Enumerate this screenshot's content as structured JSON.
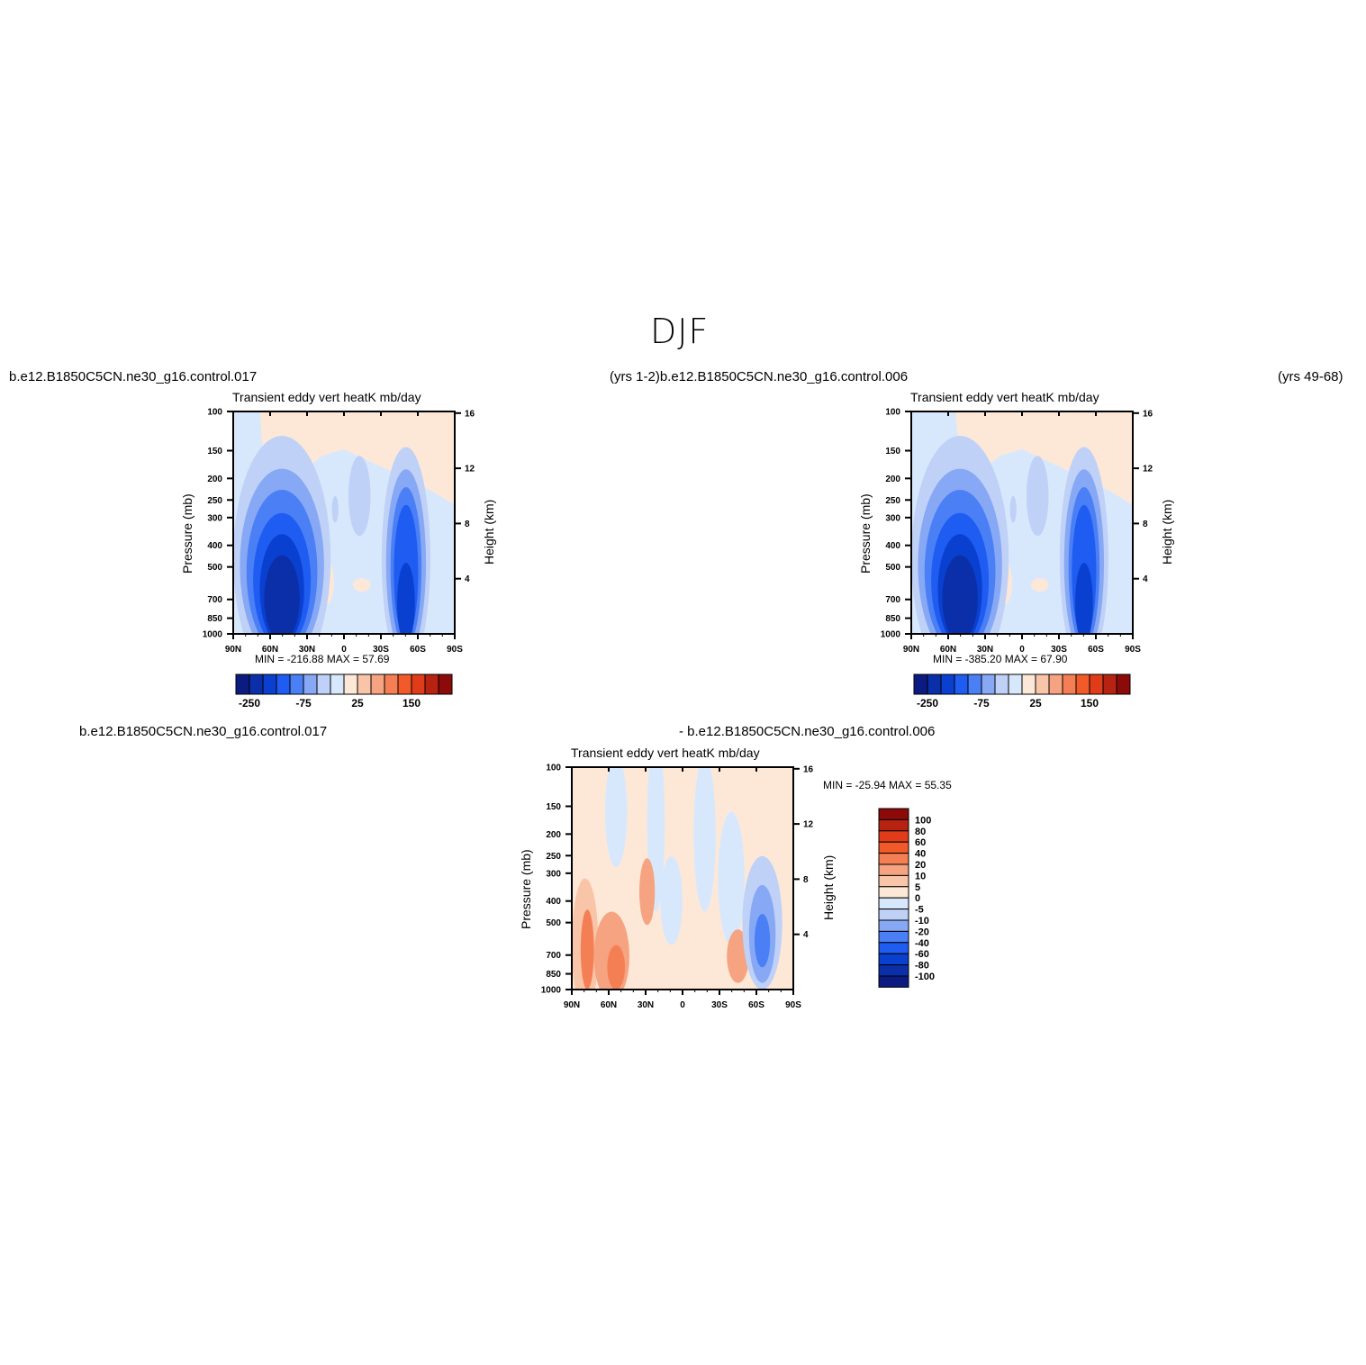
{
  "figure": {
    "title": "DJF",
    "top_left_case": "b.e12.B1850C5CN.ne30_g16.control.017",
    "top_middle_case": "(yrs 1-2)b.e12.B1850C5CN.ne30_g16.control.006",
    "top_right_years": "(yrs 49-68)",
    "bottom_left_case": "b.e12.B1850C5CN.ne30_g16.control.017",
    "bottom_right_case": "- b.e12.B1850C5CN.ne30_g16.control.006"
  },
  "colors": {
    "top_levels_palette": [
      "#0b1b82",
      "#0a2fa8",
      "#0a40d0",
      "#1f5cf2",
      "#4a7ff5",
      "#87a8f5",
      "#bfd1f7",
      "#d8e8fc",
      "#fde8d8",
      "#f9c5a8",
      "#f6a381",
      "#f57f55",
      "#f25a2a",
      "#e03c1a",
      "#b72310",
      "#8c0b09"
    ],
    "diff_palette": [
      "#0b1b82",
      "#0a2fa8",
      "#0a40d0",
      "#1f5cf2",
      "#4a7ff5",
      "#87a8f5",
      "#bfd1f7",
      "#d8e8fc",
      "#fde8d8",
      "#f9c5a8",
      "#f6a381",
      "#f57f55",
      "#f25a2a",
      "#e03c1a",
      "#b72310",
      "#8c0b09"
    ]
  },
  "chart_data": [
    {
      "type": "heatmap",
      "title": "Transient eddy vert heatK mb/day",
      "ylabel": "Pressure (mb)",
      "ylabel_right": "Height (km)",
      "x_ticks": [
        "90N",
        "60N",
        "30N",
        "0",
        "30S",
        "60S",
        "90S"
      ],
      "y_ticks": [
        "100",
        "150",
        "200",
        "250",
        "300",
        "400",
        "500",
        "700",
        "850",
        "1000"
      ],
      "y_right_ticks": [
        "16",
        "12",
        "8",
        "4"
      ],
      "min_max": "MIN = -216.88   MAX =   57.69",
      "colorbar_labels": [
        "-250",
        "-75",
        "25",
        "150"
      ],
      "features": [
        {
          "kind": "negative core",
          "lat_range": [
            "75N",
            "30N"
          ],
          "p_range": [
            350,
            950
          ],
          "min": -216.88
        },
        {
          "kind": "negative core",
          "lat_range": [
            "30S",
            "70S"
          ],
          "p_range": [
            250,
            950
          ]
        },
        {
          "kind": "positive region",
          "lat_range": [
            "70N",
            "90S"
          ],
          "p_range": [
            100,
            250
          ],
          "max": 57.69
        }
      ]
    },
    {
      "type": "heatmap",
      "title": "Transient eddy vert heatK mb/day",
      "ylabel": "Pressure (mb)",
      "ylabel_right": "Height (km)",
      "x_ticks": [
        "90N",
        "60N",
        "30N",
        "0",
        "30S",
        "60S",
        "90S"
      ],
      "y_ticks": [
        "100",
        "150",
        "200",
        "250",
        "300",
        "400",
        "500",
        "700",
        "850",
        "1000"
      ],
      "y_right_ticks": [
        "16",
        "12",
        "8",
        "4"
      ],
      "min_max": "MIN = -385.20   MAX =   67.90",
      "colorbar_labels": [
        "-250",
        "-75",
        "25",
        "150"
      ],
      "features": [
        {
          "kind": "negative core",
          "lat_range": [
            "75N",
            "30N"
          ],
          "p_range": [
            350,
            950
          ],
          "min": -385.2
        },
        {
          "kind": "negative core",
          "lat_range": [
            "30S",
            "70S"
          ],
          "p_range": [
            250,
            950
          ]
        },
        {
          "kind": "positive region",
          "lat_range": [
            "60N",
            "90S"
          ],
          "p_range": [
            100,
            250
          ],
          "max": 67.9
        }
      ]
    },
    {
      "type": "heatmap",
      "title": "Transient eddy vert heatK mb/day",
      "ylabel": "Pressure (mb)",
      "ylabel_right": "Height (km)",
      "x_ticks": [
        "90N",
        "60N",
        "30N",
        "0",
        "30S",
        "60S",
        "90S"
      ],
      "y_ticks": [
        "100",
        "150",
        "200",
        "250",
        "300",
        "400",
        "500",
        "700",
        "850",
        "1000"
      ],
      "y_right_ticks": [
        "16",
        "12",
        "8",
        "4"
      ],
      "min_max": "MIN = -25.94   MAX =   55.35",
      "colorbar_labels": [
        "100",
        "80",
        "60",
        "40",
        "20",
        "10",
        "5",
        "0",
        "-5",
        "-10",
        "-20",
        "-40",
        "-60",
        "-80",
        "-100"
      ],
      "features": [
        {
          "kind": "positive",
          "lat_range": [
            "90N",
            "20N"
          ],
          "p_range": [
            300,
            1000
          ],
          "max": 55.35
        },
        {
          "kind": "negative",
          "lat_range": [
            "50S",
            "75S"
          ],
          "p_range": [
            300,
            1000
          ],
          "min": -25.94
        }
      ]
    }
  ]
}
